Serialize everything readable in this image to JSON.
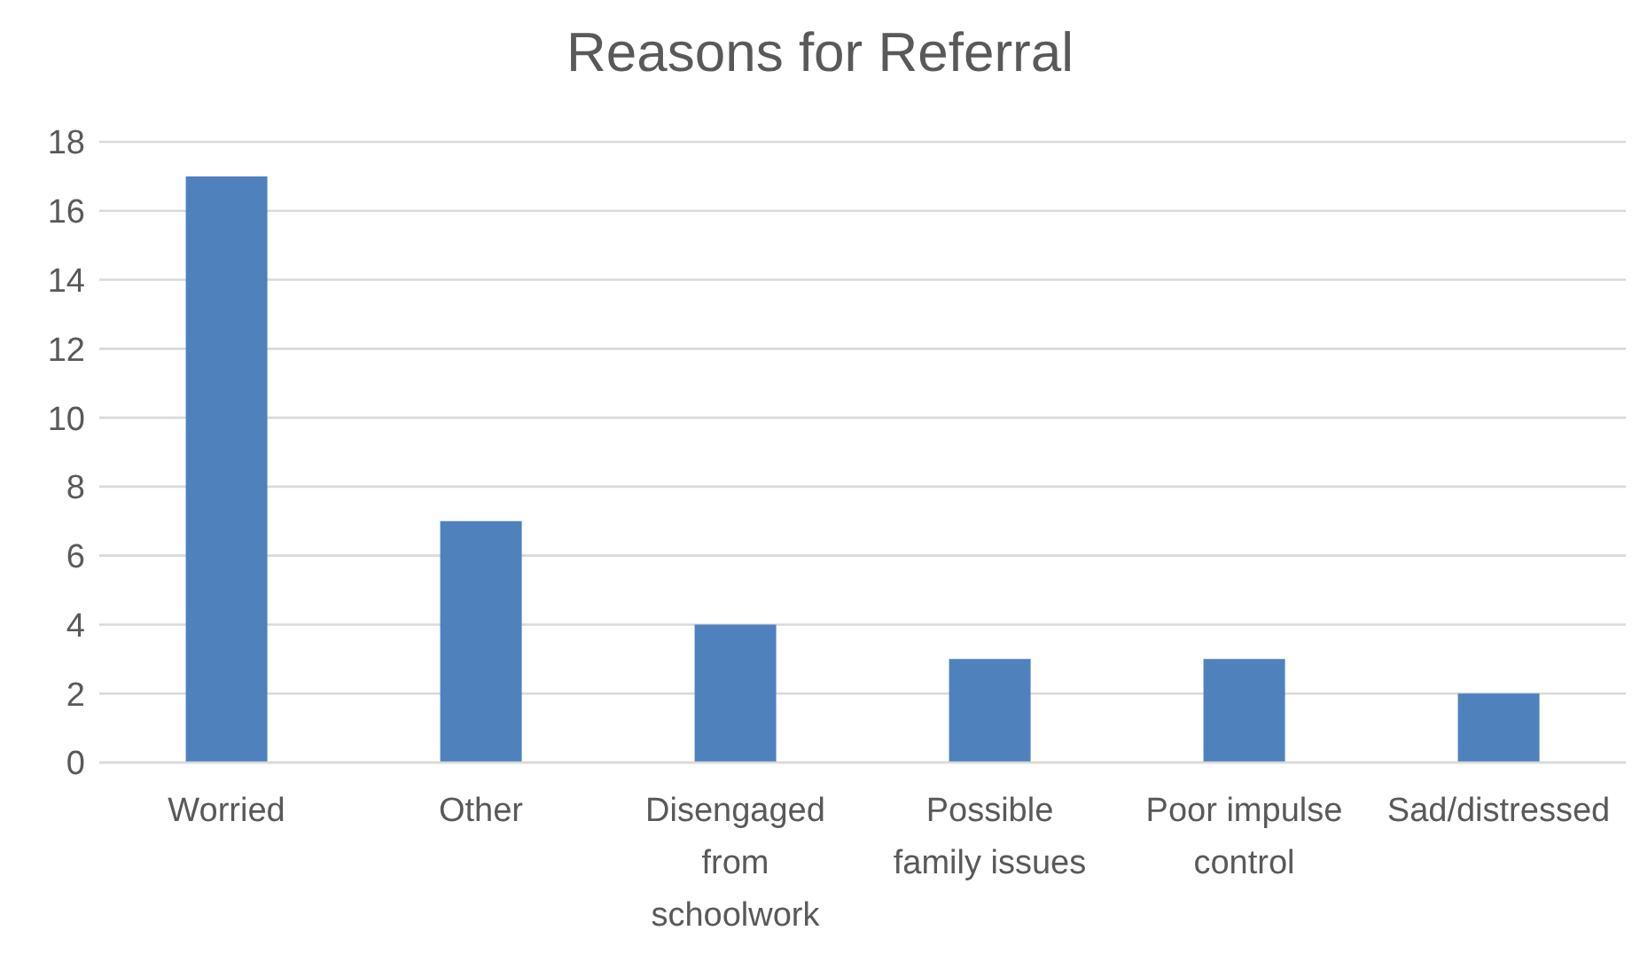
{
  "chart_data": {
    "type": "bar",
    "title": "Reasons for Referral",
    "categories": [
      "Worried",
      "Other",
      "Disengaged from schoolwork",
      "Possible family issues",
      "Poor impulse control",
      "Sad/distressed"
    ],
    "values": [
      17,
      7,
      4,
      3,
      3,
      2
    ],
    "color": "#4f81bd",
    "ylim": [
      0,
      18
    ],
    "yticks": [
      0,
      2,
      4,
      6,
      8,
      10,
      12,
      14,
      16,
      18
    ],
    "grid": "y"
  }
}
